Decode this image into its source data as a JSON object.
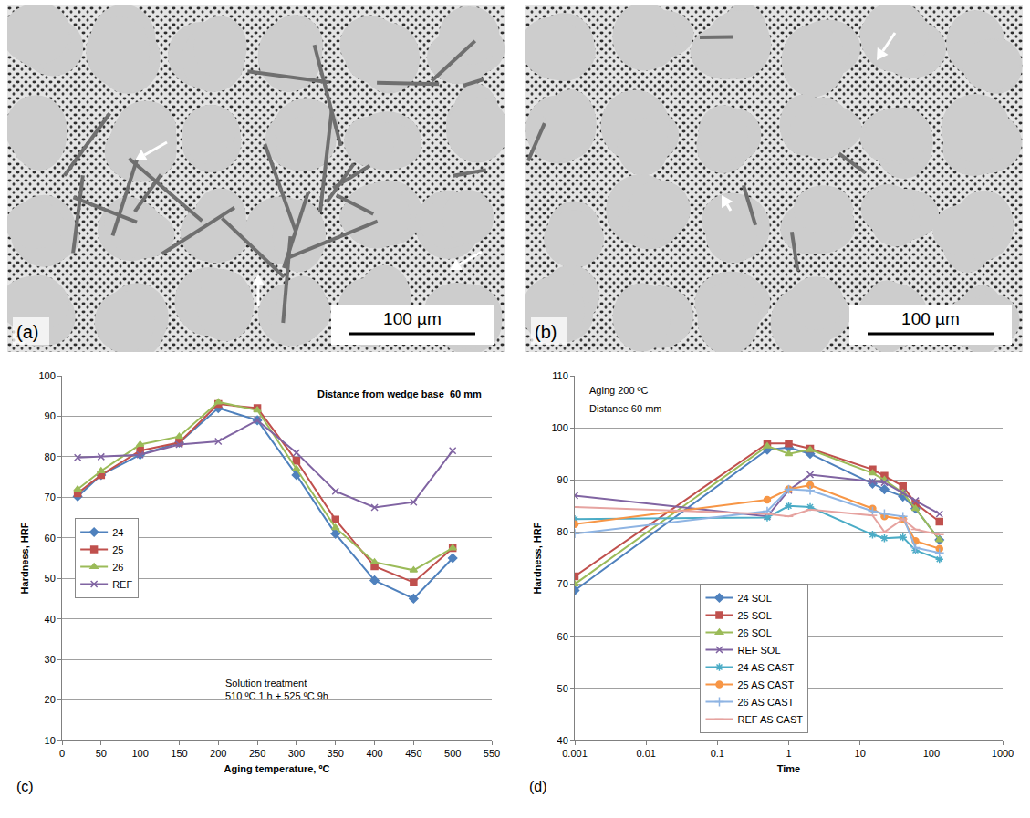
{
  "micrographs": [
    {
      "panel": "(a)",
      "scale_bar": "100 µm"
    },
    {
      "panel": "(b)",
      "scale_bar": "100 µm"
    }
  ],
  "chart_data": [
    {
      "type": "line",
      "x_label": "Aging temperature, ºC",
      "y_label": "Hardness, HRF",
      "annotations": [
        "Distance from wedge base  60 mm",
        "Solution treatment\n510 ºC 1 h + 525 ºC 9h",
        "(c)"
      ],
      "x": [
        20,
        50,
        100,
        150,
        200,
        250,
        300,
        350,
        400,
        450,
        500
      ],
      "series": [
        {
          "name": "24",
          "color": "#4f81bd",
          "marker": "diamond",
          "values": [
            70.2,
            75.5,
            80.5,
            83.5,
            92,
            89,
            75.5,
            61,
            49.5,
            45,
            55
          ]
        },
        {
          "name": "25",
          "color": "#c0504d",
          "marker": "square",
          "values": [
            71,
            75.5,
            81.5,
            83.5,
            93,
            92,
            79,
            64.5,
            53,
            49,
            57.5
          ]
        },
        {
          "name": "26",
          "color": "#9bbb59",
          "marker": "triangle",
          "values": [
            72,
            76.5,
            83,
            85,
            93.5,
            91.5,
            77,
            62.5,
            54,
            52,
            57.5
          ]
        },
        {
          "name": "REF",
          "color": "#8064a2",
          "marker": "x",
          "values": [
            79.8,
            80,
            80.5,
            83,
            83.8,
            89,
            81,
            71.5,
            67.5,
            68.8,
            81.5
          ]
        }
      ],
      "xlim": [
        0,
        550
      ],
      "xticks": [
        0,
        50,
        100,
        150,
        200,
        250,
        300,
        350,
        400,
        450,
        500,
        550
      ],
      "ylim": [
        10,
        100
      ],
      "yticks": [
        10,
        20,
        30,
        40,
        50,
        60,
        70,
        80,
        90,
        100
      ],
      "grid": "y",
      "legend": "center left"
    },
    {
      "type": "line",
      "x_label": "Time",
      "y_label": "Hardness, HRF",
      "annotations": [
        "Aging 200 ºC",
        "Distance 60 mm",
        "(d)"
      ],
      "x": [
        0.001,
        0.5,
        1,
        2,
        15,
        22,
        40,
        60,
        130
      ],
      "series": [
        {
          "name": "24 SOL",
          "color": "#4f81bd",
          "marker": "diamond",
          "values": [
            68.8,
            95.8,
            96.2,
            95,
            89.3,
            88.2,
            86.8,
            84.5,
            78.5
          ]
        },
        {
          "name": "25 SOL",
          "color": "#c0504d",
          "marker": "square",
          "values": [
            71.5,
            97,
            97,
            96,
            92,
            90.8,
            88.8,
            85.5,
            82
          ]
        },
        {
          "name": "26 SOL",
          "color": "#9bbb59",
          "marker": "triangle",
          "values": [
            70,
            96.5,
            95,
            95.8,
            91.3,
            90,
            87.5,
            84.5,
            78.5
          ]
        },
        {
          "name": "REF SOL",
          "color": "#8064a2",
          "marker": "x",
          "values": [
            87,
            83,
            88,
            91,
            89.7,
            89.5,
            87.5,
            86,
            83.5
          ]
        },
        {
          "name": "24 AS CAST",
          "color": "#4bacc6",
          "marker": "star",
          "values": [
            82.5,
            82.8,
            85,
            84.8,
            79.5,
            78.8,
            79,
            76.5,
            74.8
          ]
        },
        {
          "name": "25 AS CAST",
          "color": "#f79646",
          "marker": "circle",
          "values": [
            81.5,
            86.2,
            88.2,
            89,
            84.5,
            83,
            82.5,
            78.3,
            76.8
          ]
        },
        {
          "name": "26 AS CAST",
          "color": "#8eb4e3",
          "marker": "plus",
          "values": [
            79.7,
            84,
            88.2,
            88,
            84,
            83.5,
            83,
            77,
            76
          ]
        },
        {
          "name": "REF AS CAST",
          "color": "#e6a3a0",
          "marker": "dash",
          "values": [
            84.8,
            83.5,
            83,
            84.3,
            83.2,
            80,
            82.5,
            80.5,
            79.5
          ]
        }
      ],
      "log": "x",
      "xlim": [
        0.001,
        1000
      ],
      "xticks": [
        0.001,
        0.01,
        0.1,
        1,
        10,
        100,
        1000
      ],
      "ylim": [
        40,
        110
      ],
      "yticks": [
        40,
        50,
        60,
        70,
        80,
        90,
        100,
        110
      ],
      "grid": "y",
      "legend": "lower center"
    }
  ]
}
